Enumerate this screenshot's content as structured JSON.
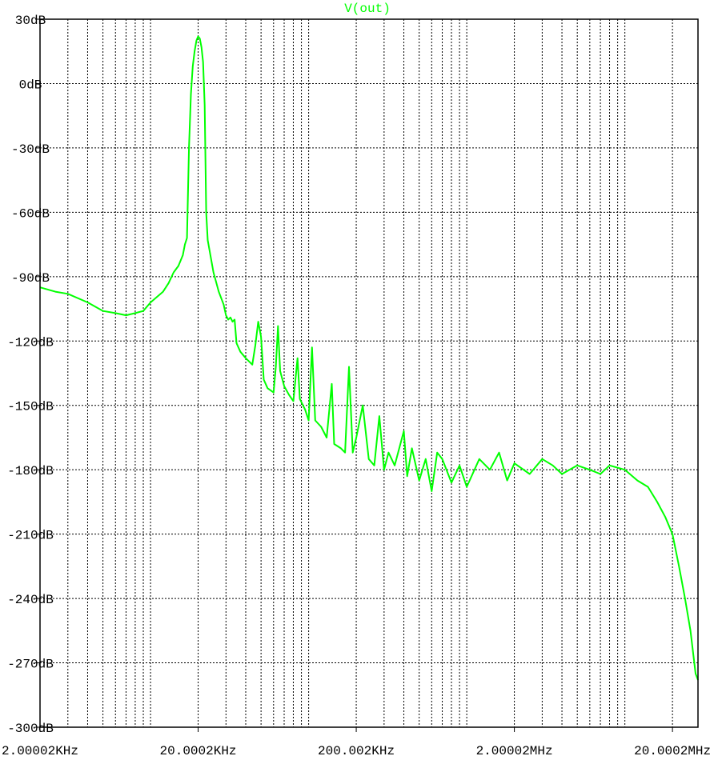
{
  "chart_data": {
    "type": "line",
    "title": "V(out)",
    "xlabel": "",
    "ylabel": "",
    "x_scale": "log",
    "xlim": [
      2000,
      29000000
    ],
    "ylim": [
      -300,
      30
    ],
    "grid": true,
    "x_ticks": [
      {
        "value": 2000,
        "label": "2.00002KHz"
      },
      {
        "value": 20000,
        "label": "20.0002KHz"
      },
      {
        "value": 200000,
        "label": "200.002KHz"
      },
      {
        "value": 2000000,
        "label": "2.00002MHz"
      },
      {
        "value": 20000000,
        "label": "20.0002MHz"
      }
    ],
    "y_ticks": [
      {
        "value": 30,
        "label": "30dB"
      },
      {
        "value": 0,
        "label": "0dB"
      },
      {
        "value": -30,
        "label": "-30dB"
      },
      {
        "value": -60,
        "label": "-60dB"
      },
      {
        "value": -90,
        "label": "-90dB"
      },
      {
        "value": -120,
        "label": "-120dB"
      },
      {
        "value": -150,
        "label": "-150dB"
      },
      {
        "value": -180,
        "label": "-180dB"
      },
      {
        "value": -210,
        "label": "-210dB"
      },
      {
        "value": -240,
        "label": "-240dB"
      },
      {
        "value": -270,
        "label": "-270dB"
      },
      {
        "value": -300,
        "label": "-300dB"
      }
    ],
    "series": [
      {
        "name": "V(out)",
        "color": "#00ff00",
        "points": [
          [
            2000,
            -95
          ],
          [
            2500,
            -97
          ],
          [
            3000,
            -98
          ],
          [
            4000,
            -102
          ],
          [
            5000,
            -106
          ],
          [
            6000,
            -107
          ],
          [
            7000,
            -108
          ],
          [
            8000,
            -107
          ],
          [
            9000,
            -106
          ],
          [
            10000,
            -102
          ],
          [
            12000,
            -97
          ],
          [
            13000,
            -93
          ],
          [
            14000,
            -88
          ],
          [
            15000,
            -85
          ],
          [
            16000,
            -80
          ],
          [
            16500,
            -75
          ],
          [
            17000,
            -72
          ],
          [
            17500,
            -30
          ],
          [
            18000,
            -5
          ],
          [
            18500,
            8
          ],
          [
            19000,
            15
          ],
          [
            19500,
            20
          ],
          [
            20000,
            22
          ],
          [
            20500,
            21
          ],
          [
            21000,
            17
          ],
          [
            21500,
            10
          ],
          [
            22000,
            -10
          ],
          [
            22500,
            -60
          ],
          [
            23000,
            -73
          ],
          [
            25000,
            -88
          ],
          [
            27000,
            -97
          ],
          [
            29000,
            -103
          ],
          [
            30000,
            -108
          ],
          [
            31000,
            -110
          ],
          [
            32000,
            -109
          ],
          [
            33000,
            -111
          ],
          [
            34000,
            -110
          ],
          [
            35000,
            -121
          ],
          [
            37000,
            -125
          ],
          [
            40000,
            -128
          ],
          [
            44000,
            -131
          ],
          [
            46000,
            -122
          ],
          [
            48000,
            -111
          ],
          [
            50000,
            -118
          ],
          [
            52000,
            -138
          ],
          [
            55000,
            -142
          ],
          [
            60000,
            -144
          ],
          [
            62000,
            -132
          ],
          [
            64000,
            -113
          ],
          [
            66000,
            -134
          ],
          [
            70000,
            -141
          ],
          [
            75000,
            -145
          ],
          [
            80000,
            -148
          ],
          [
            85000,
            -128
          ],
          [
            88000,
            -147
          ],
          [
            95000,
            -152
          ],
          [
            100000,
            -157
          ],
          [
            105000,
            -123
          ],
          [
            110000,
            -157
          ],
          [
            120000,
            -160
          ],
          [
            130000,
            -165
          ],
          [
            140000,
            -140
          ],
          [
            145000,
            -168
          ],
          [
            160000,
            -170
          ],
          [
            170000,
            -172
          ],
          [
            180000,
            -132
          ],
          [
            190000,
            -172
          ],
          [
            200000,
            -165
          ],
          [
            220000,
            -150
          ],
          [
            240000,
            -175
          ],
          [
            260000,
            -178
          ],
          [
            280000,
            -155
          ],
          [
            300000,
            -180
          ],
          [
            320000,
            -172
          ],
          [
            350000,
            -178
          ],
          [
            400000,
            -162
          ],
          [
            420000,
            -183
          ],
          [
            450000,
            -170
          ],
          [
            500000,
            -185
          ],
          [
            550000,
            -175
          ],
          [
            600000,
            -190
          ],
          [
            650000,
            -172
          ],
          [
            700000,
            -175
          ],
          [
            800000,
            -186
          ],
          [
            900000,
            -178
          ],
          [
            1000000,
            -188
          ],
          [
            1200000,
            -175
          ],
          [
            1400000,
            -180
          ],
          [
            1600000,
            -172
          ],
          [
            1800000,
            -185
          ],
          [
            2000000,
            -177
          ],
          [
            2500000,
            -182
          ],
          [
            3000000,
            -175
          ],
          [
            3500000,
            -178
          ],
          [
            4000000,
            -182
          ],
          [
            5000000,
            -178
          ],
          [
            6000000,
            -180
          ],
          [
            7000000,
            -182
          ],
          [
            8000000,
            -178
          ],
          [
            10000000,
            -180
          ],
          [
            12000000,
            -185
          ],
          [
            14000000,
            -188
          ],
          [
            16000000,
            -195
          ],
          [
            18000000,
            -202
          ],
          [
            20000000,
            -210
          ],
          [
            22000000,
            -225
          ],
          [
            24000000,
            -240
          ],
          [
            26000000,
            -255
          ],
          [
            28000000,
            -275
          ],
          [
            29000000,
            -278
          ]
        ]
      }
    ]
  }
}
